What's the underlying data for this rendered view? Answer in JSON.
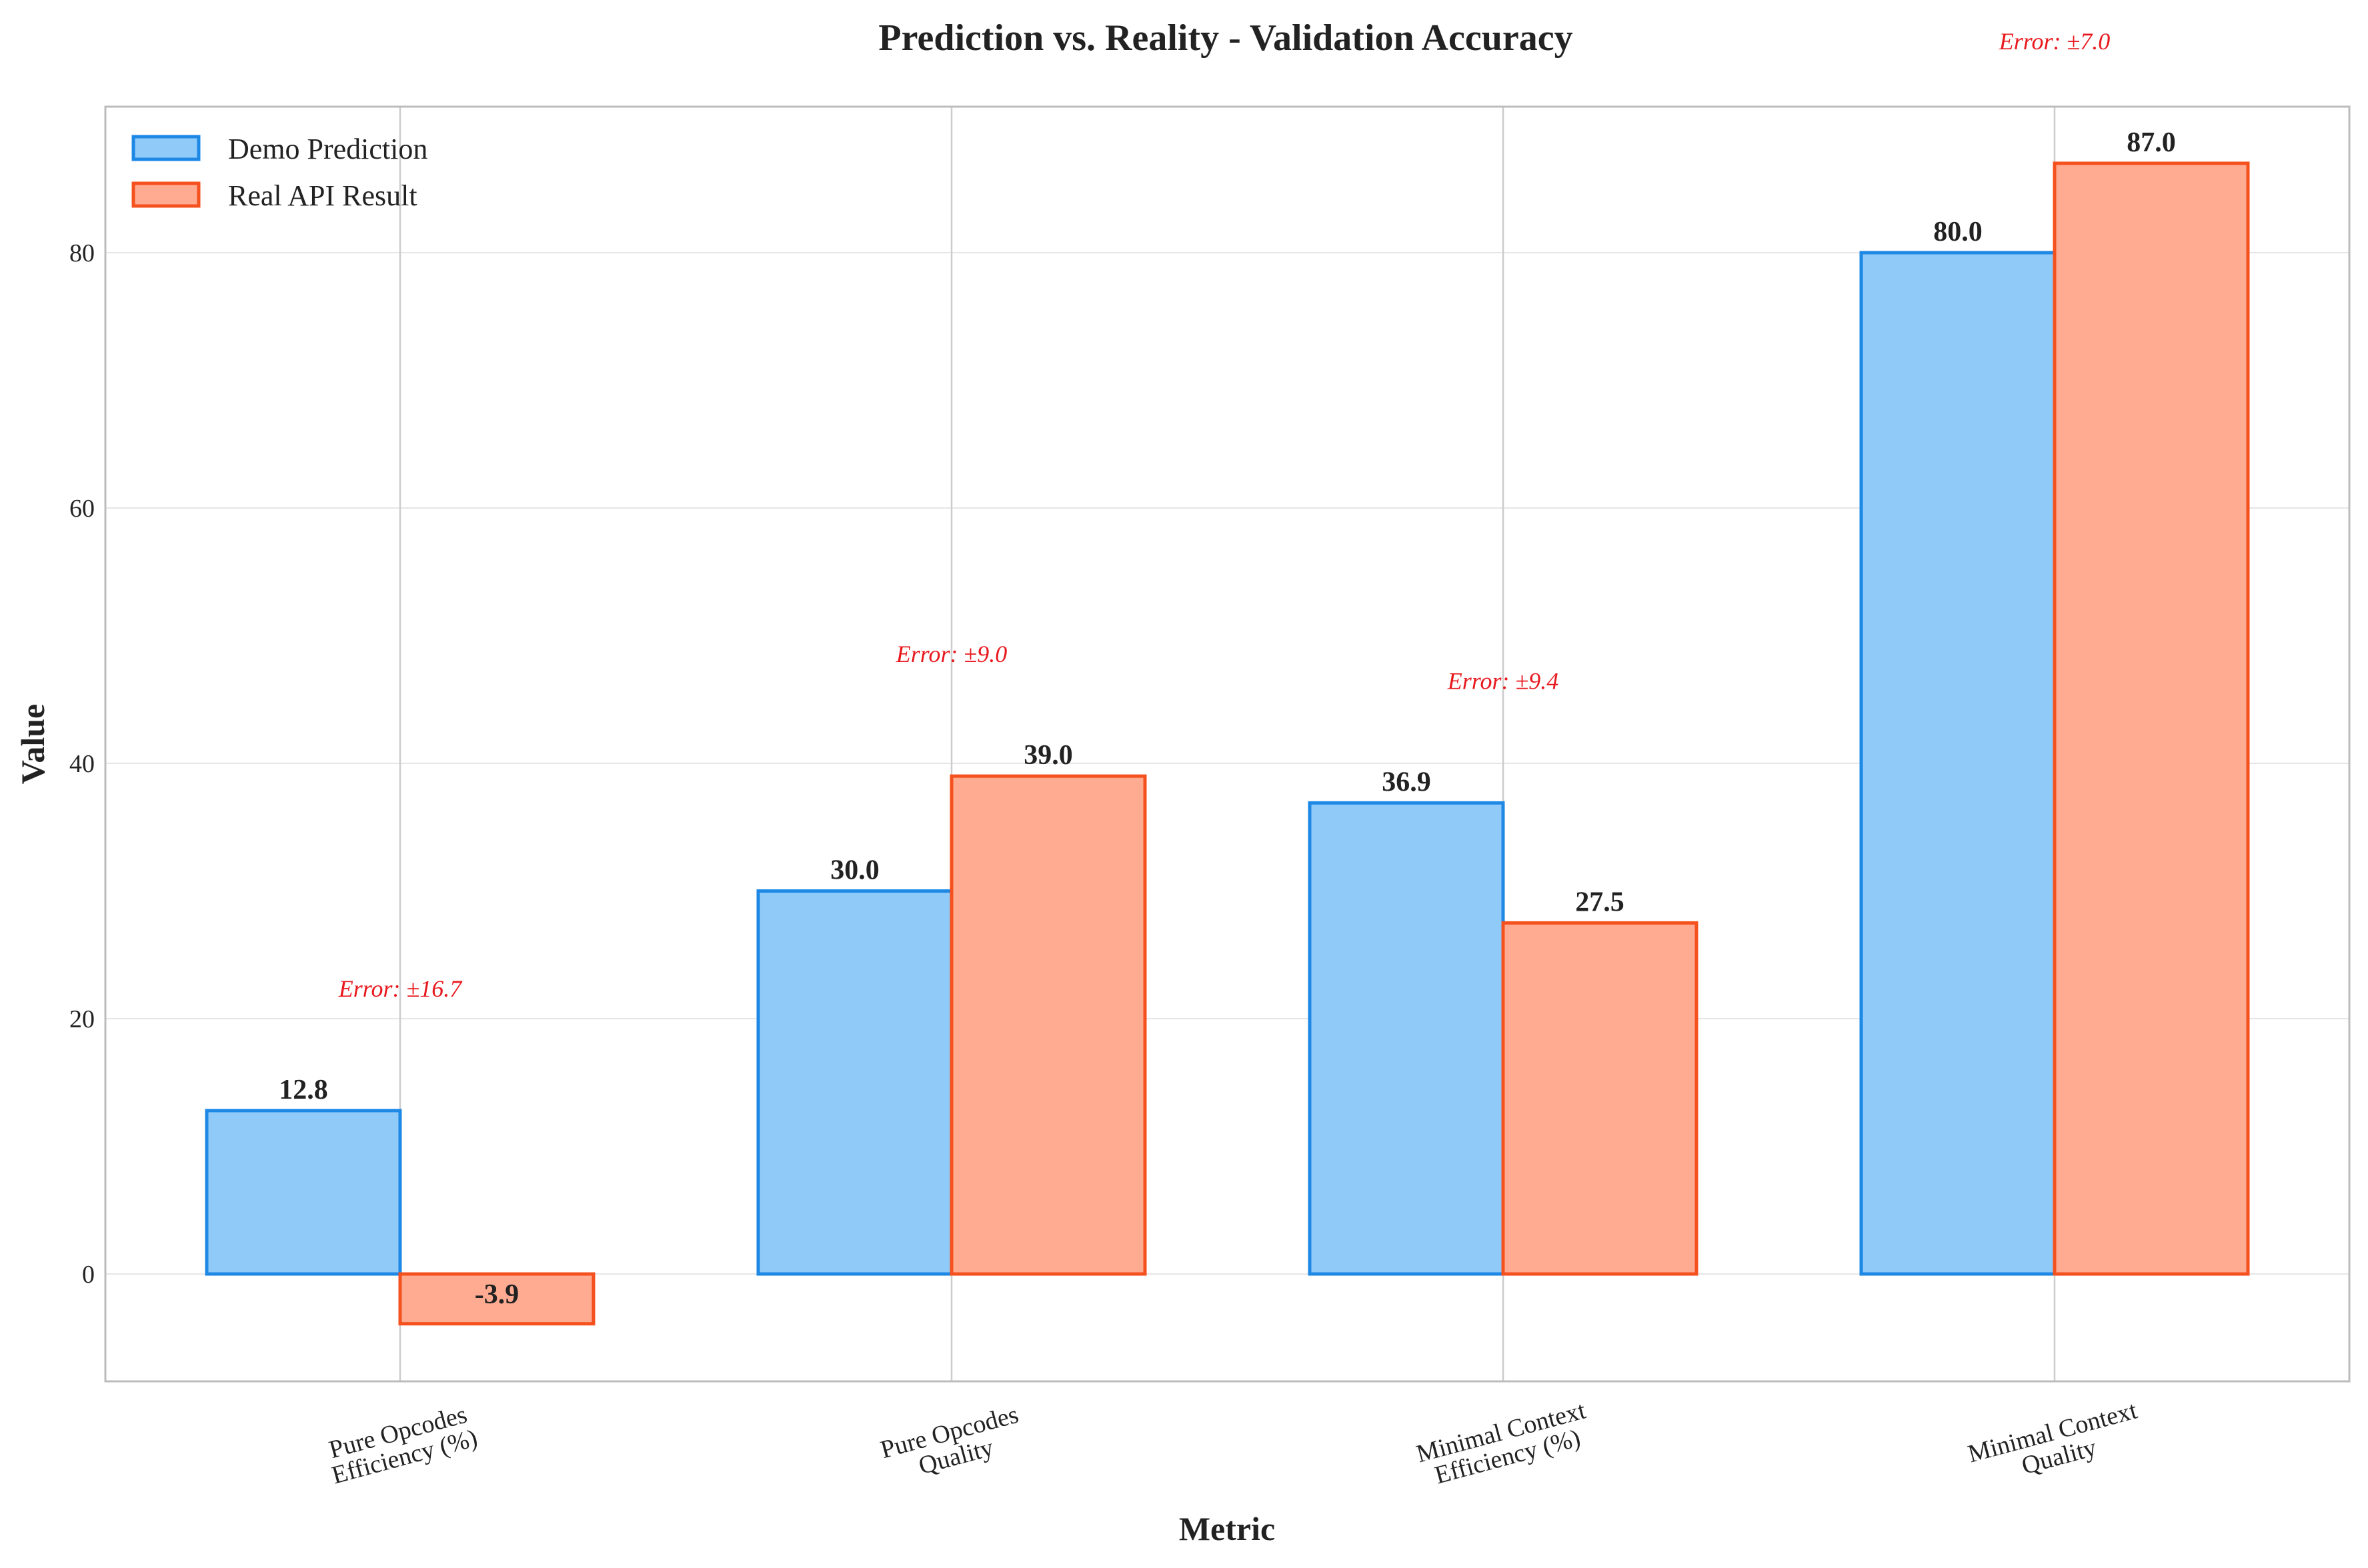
{
  "chart_data": {
    "type": "bar",
    "title": "Prediction vs. Reality - Validation Accuracy",
    "xlabel": "Metric",
    "ylabel": "Value",
    "categories": [
      [
        "Pure Opcodes",
        "Efficiency (%)"
      ],
      [
        "Pure Opcodes",
        "Quality"
      ],
      [
        "Minimal Context",
        "Efficiency (%)"
      ],
      [
        "Minimal Context",
        "Quality"
      ]
    ],
    "series": [
      {
        "name": "Demo Prediction",
        "values": [
          12.8,
          30.0,
          36.9,
          80.0
        ],
        "labels": [
          "12.8",
          "30.0",
          "36.9",
          "80.0"
        ],
        "fill": "#90caf9",
        "stroke": "#1e88e5"
      },
      {
        "name": "Real API Result",
        "values": [
          -3.9,
          39.0,
          27.5,
          87.0
        ],
        "labels": [
          "-3.9",
          "39.0",
          "27.5",
          "87.0"
        ],
        "fill": "#ffab91",
        "stroke": "#f4511e"
      }
    ],
    "errors": [
      "Error: ±16.7",
      "Error: ±9.0",
      "Error: ±9.4",
      "Error: ±7.0"
    ],
    "error_color": "#e8191e",
    "ylim": [
      -8.45,
      91.35
    ],
    "yticks": [
      0,
      20,
      40,
      60,
      80
    ],
    "grid": true,
    "legend_position": "top-left"
  }
}
